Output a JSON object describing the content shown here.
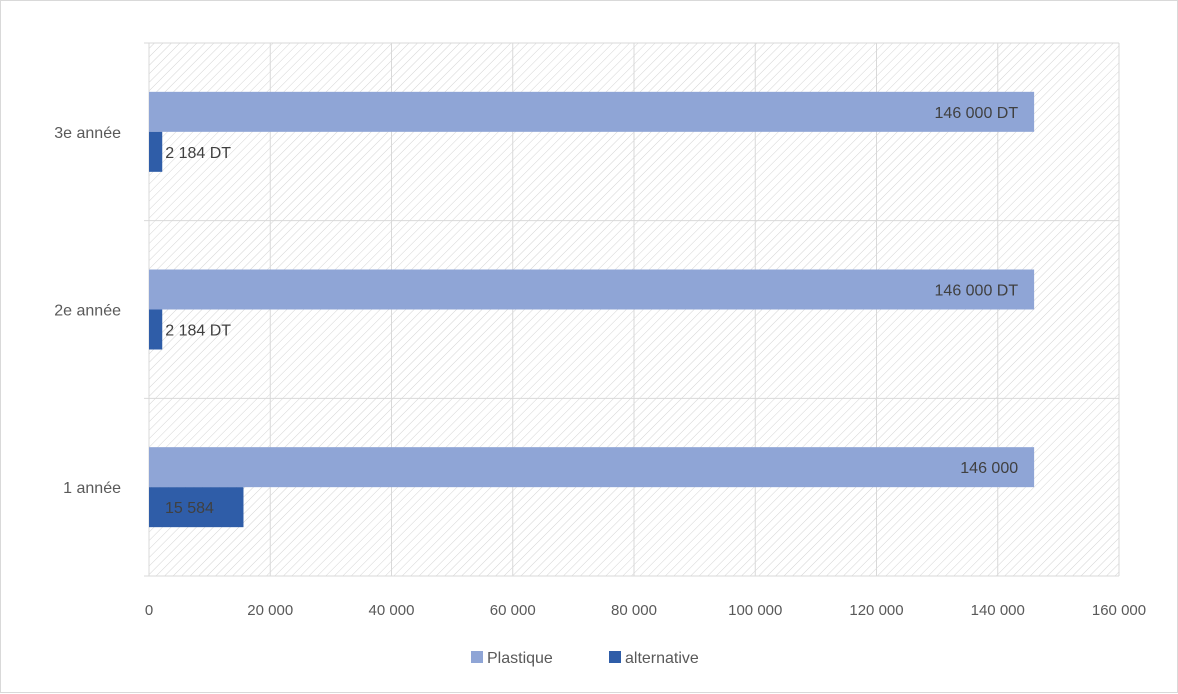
{
  "chart_data": {
    "type": "bar",
    "orientation": "horizontal",
    "categories": [
      "3e année",
      "2e année",
      "1 année"
    ],
    "series": [
      {
        "name": "Plastique",
        "values": [
          146000,
          146000,
          146000
        ],
        "labels": [
          "146 000 DT",
          "146 000 DT",
          "146 000"
        ],
        "color": "#8FA5D6"
      },
      {
        "name": "alternative",
        "values": [
          2184,
          2184,
          15584
        ],
        "labels": [
          "2 184 DT",
          "2 184 DT",
          "15 584"
        ],
        "color": "#2F5DA8"
      }
    ],
    "xlim": [
      0,
      160000
    ],
    "xticks": [
      0,
      20000,
      40000,
      60000,
      80000,
      100000,
      120000,
      140000,
      160000
    ],
    "xtick_labels": [
      "0",
      "20 000",
      "40 000",
      "60 000",
      "80 000",
      "100 000",
      "120 000",
      "140 000",
      "160 000"
    ],
    "grid": true,
    "plot_background": "diagonal hatch",
    "legend_position": "bottom"
  }
}
